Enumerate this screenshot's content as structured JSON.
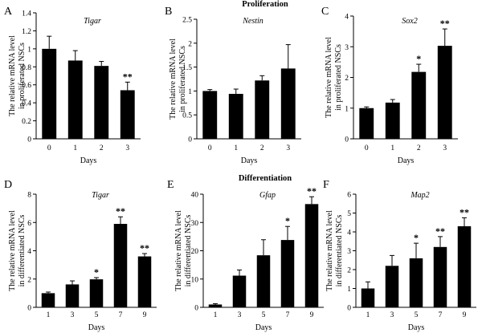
{
  "sections": {
    "top": "Proliferation",
    "bottom": "Differentiation"
  },
  "chart_data": [
    {
      "type": "bar",
      "panel": "A",
      "gene": "Tigar",
      "ylabel": [
        "The relative mRNA level",
        "in proliferated NSCs"
      ],
      "xlabel": "Days",
      "categories": [
        "0",
        "1",
        "2",
        "3"
      ],
      "values": [
        1.0,
        0.87,
        0.81,
        0.54
      ],
      "errors": [
        0.14,
        0.11,
        0.05,
        0.09
      ],
      "significance": [
        "",
        "",
        "",
        "**"
      ],
      "ylim": [
        0,
        1.4
      ],
      "yticks": [
        0,
        0.2,
        0.4,
        0.6,
        0.8,
        1,
        1.2,
        1.4
      ],
      "ytick_labels": [
        "0",
        "0.2",
        "0.4",
        "0.6",
        "0.8",
        "1",
        "1.2",
        "1.4"
      ]
    },
    {
      "type": "bar",
      "panel": "B",
      "gene": "Nestin",
      "ylabel": [
        "The relative mRNA level",
        "in proliferated NSCs"
      ],
      "xlabel": "Days",
      "categories": [
        "0",
        "1",
        "2",
        "3"
      ],
      "values": [
        1.0,
        0.94,
        1.22,
        1.47
      ],
      "errors": [
        0.03,
        0.1,
        0.1,
        0.5
      ],
      "significance": [
        "",
        "",
        "",
        ""
      ],
      "ylim": [
        0,
        2.5
      ],
      "yticks": [
        0,
        0.5,
        1,
        1.5,
        2,
        2.5
      ],
      "ytick_labels": [
        "0",
        "0.5",
        "1",
        "1.5",
        "2",
        "2.5"
      ]
    },
    {
      "type": "bar",
      "panel": "C",
      "gene": "Sox2",
      "ylabel": [
        "The relative mRNA level",
        "in proliferated NSCs"
      ],
      "xlabel": "Days",
      "categories": [
        "0",
        "1",
        "2",
        "3"
      ],
      "values": [
        1.0,
        1.18,
        2.18,
        3.03
      ],
      "errors": [
        0.04,
        0.1,
        0.25,
        0.55
      ],
      "significance": [
        "",
        "",
        "*",
        "**"
      ],
      "ylim": [
        0,
        4
      ],
      "yticks": [
        0,
        1,
        2,
        3,
        4
      ],
      "ytick_labels": [
        "0",
        "1",
        "2",
        "3",
        "4"
      ]
    },
    {
      "type": "bar",
      "panel": "D",
      "gene": "Tigar",
      "ylabel": [
        "The relative mRNA level",
        "in differentiated NSCs"
      ],
      "xlabel": "Days",
      "categories": [
        "1",
        "3",
        "5",
        "7",
        "9"
      ],
      "values": [
        1.0,
        1.62,
        1.98,
        5.9,
        3.6
      ],
      "errors": [
        0.08,
        0.25,
        0.12,
        0.5,
        0.2
      ],
      "significance": [
        "",
        "",
        "*",
        "**",
        "**"
      ],
      "ylim": [
        0,
        8
      ],
      "yticks": [
        0,
        2,
        4,
        6,
        8
      ],
      "ytick_labels": [
        "0",
        "2",
        "4",
        "6",
        "8"
      ]
    },
    {
      "type": "bar",
      "panel": "E",
      "gene": "Gfap",
      "ylabel": [
        "The relative mRNA level",
        "in differentiated NSCs"
      ],
      "xlabel": "Days",
      "categories": [
        "1",
        "3",
        "5",
        "7",
        "9"
      ],
      "values": [
        1.0,
        11.2,
        18.4,
        23.8,
        36.5
      ],
      "errors": [
        0.3,
        2.0,
        5.5,
        4.8,
        2.6
      ],
      "significance": [
        "",
        "",
        "",
        "*",
        "**"
      ],
      "ylim": [
        0,
        40
      ],
      "yticks": [
        0,
        10,
        20,
        30,
        40
      ],
      "ytick_labels": [
        "0",
        "10",
        "20",
        "30",
        "40"
      ]
    },
    {
      "type": "bar",
      "panel": "F",
      "gene": "Map2",
      "ylabel": [
        "The relative mRNA level",
        "in differentiated NSCs"
      ],
      "xlabel": "Days",
      "categories": [
        "1",
        "3",
        "5",
        "7",
        "9"
      ],
      "values": [
        1.0,
        2.2,
        2.6,
        3.2,
        4.3
      ],
      "errors": [
        0.35,
        0.55,
        0.8,
        0.55,
        0.45
      ],
      "significance": [
        "",
        "",
        "*",
        "**",
        "**"
      ],
      "ylim": [
        0,
        6
      ],
      "yticks": [
        0,
        1,
        2,
        3,
        4,
        5,
        6
      ],
      "ytick_labels": [
        "0",
        "1",
        "2",
        "3",
        "4",
        "5",
        "6"
      ]
    }
  ]
}
